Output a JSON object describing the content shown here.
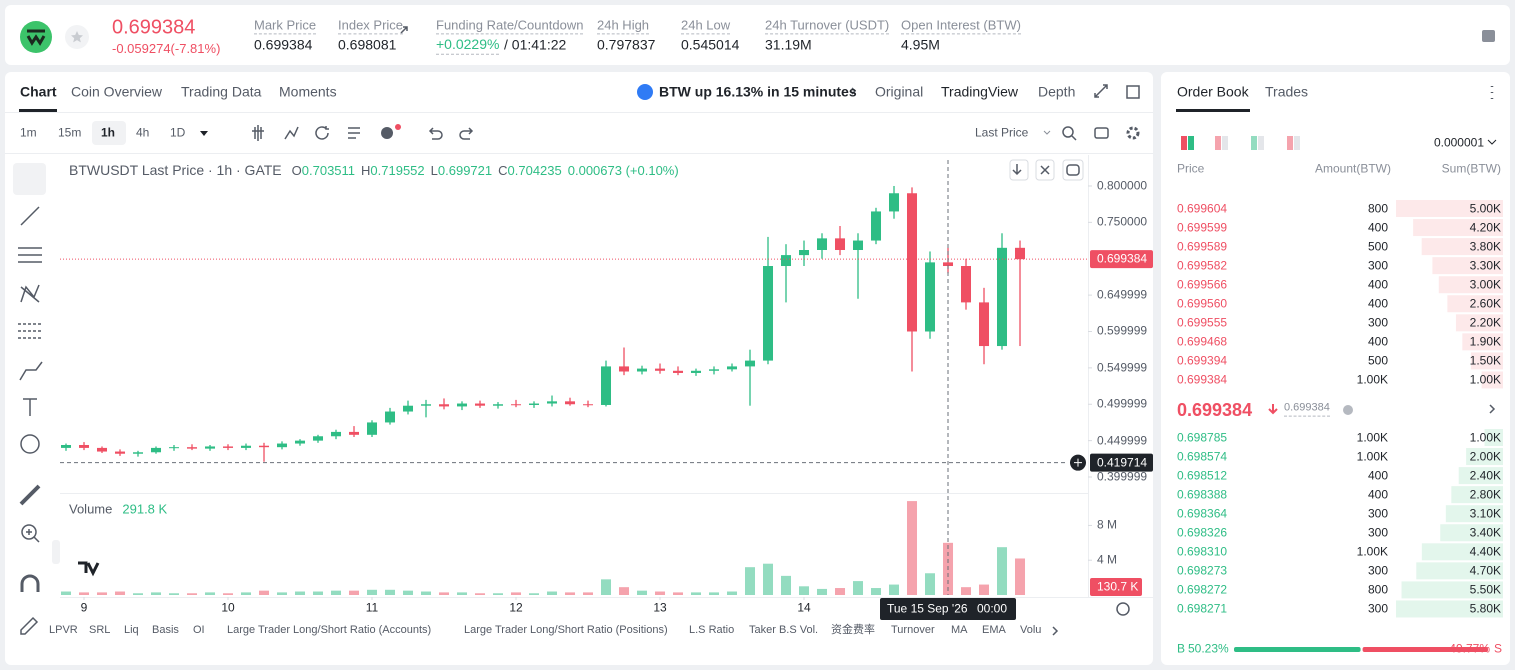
{
  "header": {
    "price": "0.699384",
    "change": "-0.059274(-7.81%)",
    "stats": [
      {
        "label": "Mark Price",
        "value": "0.699384"
      },
      {
        "label": "Index Price",
        "value": "0.698081"
      },
      {
        "label": "Funding Rate/Countdown",
        "value": "+0.0229%",
        "countdown": "/ 01:41:22"
      },
      {
        "label": "24h High",
        "value": "0.797837"
      },
      {
        "label": "24h Low",
        "value": "0.545014"
      },
      {
        "label": "24h Turnover (USDT)",
        "value": "31.19M"
      },
      {
        "label": "Open Interest (BTW)",
        "value": "4.95M"
      }
    ]
  },
  "chart_tabs": [
    "Chart",
    "Coin Overview",
    "Trading Data",
    "Moments"
  ],
  "news": "BTW up 16.13% in 15 minutes",
  "view_tabs": [
    "Original",
    "TradingView",
    "Depth"
  ],
  "intervals": [
    "1m",
    "15m",
    "1h",
    "4h",
    "1D"
  ],
  "price_type": "Last Price",
  "indicators": [
    "LPVR",
    "SRL",
    "Liq",
    "Basis",
    "OI",
    "Large Trader Long/Short Ratio (Accounts)",
    "Large Trader Long/Short Ratio (Positions)",
    "L.S Ratio",
    "Taker B.S Vol.",
    "资金费率",
    "Turnover",
    "MA",
    "EMA",
    "Volu"
  ],
  "chart_data": {
    "type": "candlestick",
    "title": "BTWUSDT Last Price · 1h · GATE",
    "legend": {
      "ohlc": [
        {
          "key": "O",
          "value": "0.703511"
        },
        {
          "key": "H",
          "value": "0.719552"
        },
        {
          "key": "L",
          "value": "0.699721"
        },
        {
          "key": "C",
          "value": "0.704235"
        }
      ],
      "change": "0.000673 (+0.10%)"
    },
    "up_color": "#2ebd85",
    "down_color": "#ef4f63",
    "up_volume_color": "#93dcc0",
    "down_volume_color": "#f5a3ad",
    "x": [
      8.875,
      9,
      9.125,
      9.25,
      9.375,
      9.5,
      9.625,
      9.75,
      9.875,
      10,
      10.125,
      10.25,
      10.375,
      10.5,
      10.625,
      10.75,
      10.875,
      11,
      11.125,
      11.25,
      11.375,
      11.5,
      11.625,
      11.75,
      11.875,
      12,
      12.125,
      12.25,
      12.375,
      12.5,
      12.625,
      12.75,
      12.875,
      13,
      13.125,
      13.25,
      13.375,
      13.5,
      13.625,
      13.75,
      13.875,
      14,
      14.125,
      14.25,
      14.375,
      14.5,
      14.625,
      14.75,
      14.875,
      15,
      15.125,
      15.25,
      15.375,
      15.5
    ],
    "open": [
      0.44,
      0.444,
      0.44,
      0.435,
      0.432,
      0.434,
      0.44,
      0.441,
      0.439,
      0.442,
      0.44,
      0.443,
      0.441,
      0.446,
      0.45,
      0.456,
      0.462,
      0.458,
      0.475,
      0.49,
      0.498,
      0.5,
      0.497,
      0.501,
      0.498,
      0.5,
      0.499,
      0.501,
      0.504,
      0.5,
      0.499,
      0.552,
      0.545,
      0.549,
      0.546,
      0.543,
      0.546,
      0.548,
      0.552,
      0.56,
      0.69,
      0.705,
      0.712,
      0.728,
      0.712,
      0.725,
      0.765,
      0.79,
      0.6,
      0.695,
      0.69,
      0.64,
      0.58,
      0.715
    ],
    "high": [
      0.446,
      0.448,
      0.442,
      0.438,
      0.436,
      0.442,
      0.444,
      0.445,
      0.444,
      0.445,
      0.446,
      0.447,
      0.449,
      0.452,
      0.458,
      0.465,
      0.47,
      0.478,
      0.495,
      0.505,
      0.506,
      0.508,
      0.504,
      0.505,
      0.503,
      0.506,
      0.504,
      0.512,
      0.509,
      0.505,
      0.56,
      0.578,
      0.553,
      0.556,
      0.552,
      0.549,
      0.552,
      0.556,
      0.575,
      0.73,
      0.72,
      0.725,
      0.735,
      0.745,
      0.735,
      0.77,
      0.8,
      0.798,
      0.71,
      0.715,
      0.7,
      0.66,
      0.735,
      0.725
    ],
    "low": [
      0.436,
      0.437,
      0.433,
      0.429,
      0.428,
      0.432,
      0.436,
      0.437,
      0.436,
      0.437,
      0.437,
      0.421,
      0.438,
      0.443,
      0.447,
      0.452,
      0.455,
      0.455,
      0.472,
      0.486,
      0.482,
      0.493,
      0.492,
      0.495,
      0.494,
      0.496,
      0.495,
      0.497,
      0.498,
      0.496,
      0.497,
      0.54,
      0.541,
      0.542,
      0.54,
      0.539,
      0.541,
      0.545,
      0.498,
      0.555,
      0.64,
      0.69,
      0.7,
      0.705,
      0.645,
      0.72,
      0.755,
      0.545,
      0.59,
      0.68,
      0.63,
      0.555,
      0.575,
      0.58
    ],
    "close": [
      0.444,
      0.44,
      0.435,
      0.432,
      0.434,
      0.44,
      0.441,
      0.439,
      0.442,
      0.44,
      0.443,
      0.441,
      0.446,
      0.45,
      0.456,
      0.462,
      0.458,
      0.475,
      0.49,
      0.498,
      0.5,
      0.497,
      0.501,
      0.498,
      0.5,
      0.499,
      0.501,
      0.504,
      0.5,
      0.499,
      0.552,
      0.545,
      0.549,
      0.546,
      0.543,
      0.546,
      0.548,
      0.552,
      0.56,
      0.69,
      0.705,
      0.712,
      0.728,
      0.712,
      0.725,
      0.765,
      0.79,
      0.6,
      0.695,
      0.69,
      0.64,
      0.58,
      0.715,
      0.699384
    ],
    "volume": [
      400000,
      300000,
      300000,
      400000,
      200000,
      300000,
      200000,
      200000,
      300000,
      200000,
      300000,
      500000,
      300000,
      400000,
      400000,
      500000,
      500000,
      600000,
      600000,
      500000,
      400000,
      300000,
      300000,
      200000,
      200000,
      300000,
      200000,
      400000,
      300000,
      300000,
      1800000,
      900000,
      500000,
      400000,
      300000,
      300000,
      300000,
      400000,
      3200000,
      3600000,
      2200000,
      1000000,
      700000,
      800000,
      1600000,
      800000,
      1200000,
      10800000,
      2500000,
      6000000,
      900000,
      1200000,
      5500000,
      4200000
    ],
    "xlim": [
      8.8333,
      15.9722
    ],
    "xticks": [
      9,
      10,
      11,
      12,
      13,
      14
    ],
    "ylim": [
      0.3794,
      0.8357
    ],
    "yticks": [
      {
        "value": 0.8,
        "label": "0.800000"
      },
      {
        "value": 0.75,
        "label": "0.750000"
      },
      {
        "value": 0.649999,
        "label": "0.649999"
      },
      {
        "value": 0.599999,
        "label": "0.599999"
      },
      {
        "value": 0.549999,
        "label": "0.549999"
      },
      {
        "value": 0.499999,
        "label": "0.499999"
      },
      {
        "value": 0.449999,
        "label": "0.449999"
      },
      {
        "value": 0.399999,
        "label": "0.399999"
      }
    ],
    "volume_title": "Volume",
    "volume_value": "291.8 K",
    "volume_ylim": [
      0,
      11500000
    ],
    "volume_yticks": [
      {
        "value": 4000000,
        "label": "4 M"
      },
      {
        "value": 8000000,
        "label": "8 M"
      }
    ],
    "volume_cursor": {
      "value": 130700,
      "label": "130.7 K"
    },
    "last_price": 0.699384,
    "crosshair": {
      "x": 15,
      "date": "Tue 15 Sep '26",
      "time": "00:00",
      "price": 0.419714
    }
  },
  "order_book": {
    "tabs": [
      "Order Book",
      "Trades"
    ],
    "precision": "0.000001",
    "columns": [
      "Price",
      "Amount(BTW)",
      "Sum(BTW)"
    ],
    "asks": [
      {
        "price": "0.699604",
        "amount": "800",
        "sum": {
          "value": 5000,
          "label": "5.00K"
        }
      },
      {
        "price": "0.699599",
        "amount": "400",
        "sum": {
          "value": 4200,
          "label": "4.20K"
        }
      },
      {
        "price": "0.699589",
        "amount": "500",
        "sum": {
          "value": 3800,
          "label": "3.80K"
        }
      },
      {
        "price": "0.699582",
        "amount": "300",
        "sum": {
          "value": 3300,
          "label": "3.30K"
        }
      },
      {
        "price": "0.699566",
        "amount": "400",
        "sum": {
          "value": 3000,
          "label": "3.00K"
        }
      },
      {
        "price": "0.699560",
        "amount": "400",
        "sum": {
          "value": 2600,
          "label": "2.60K"
        }
      },
      {
        "price": "0.699555",
        "amount": "300",
        "sum": {
          "value": 2200,
          "label": "2.20K"
        }
      },
      {
        "price": "0.699468",
        "amount": "400",
        "sum": {
          "value": 1900,
          "label": "1.90K"
        }
      },
      {
        "price": "0.699394",
        "amount": "500",
        "sum": {
          "value": 1500,
          "label": "1.50K"
        }
      },
      {
        "price": "0.699384",
        "amount": "1.00K",
        "sum": {
          "value": 1000,
          "label": "1.00K"
        }
      }
    ],
    "mid_price": "0.699384",
    "mark_price": "0.699384",
    "bids": [
      {
        "price": "0.698785",
        "amount": "1.00K",
        "sum": {
          "value": 1000,
          "label": "1.00K"
        }
      },
      {
        "price": "0.698574",
        "amount": "1.00K",
        "sum": {
          "value": 2000,
          "label": "2.00K"
        }
      },
      {
        "price": "0.698512",
        "amount": "400",
        "sum": {
          "value": 2400,
          "label": "2.40K"
        }
      },
      {
        "price": "0.698388",
        "amount": "400",
        "sum": {
          "value": 2800,
          "label": "2.80K"
        }
      },
      {
        "price": "0.698364",
        "amount": "300",
        "sum": {
          "value": 3100,
          "label": "3.10K"
        }
      },
      {
        "price": "0.698326",
        "amount": "300",
        "sum": {
          "value": 3400,
          "label": "3.40K"
        }
      },
      {
        "price": "0.698310",
        "amount": "1.00K",
        "sum": {
          "value": 4400,
          "label": "4.40K"
        }
      },
      {
        "price": "0.698273",
        "amount": "300",
        "sum": {
          "value": 4700,
          "label": "4.70K"
        }
      },
      {
        "price": "0.698272",
        "amount": "800",
        "sum": {
          "value": 5500,
          "label": "5.50K"
        }
      },
      {
        "price": "0.698271",
        "amount": "300",
        "sum": {
          "value": 5800,
          "label": "5.80K"
        }
      }
    ],
    "ratio": {
      "buy_key": "B",
      "buy": {
        "value": 50.23,
        "label": "50.23%"
      },
      "sell": {
        "value": 49.77,
        "label": "49.77%"
      },
      "sell_key": "S"
    }
  }
}
